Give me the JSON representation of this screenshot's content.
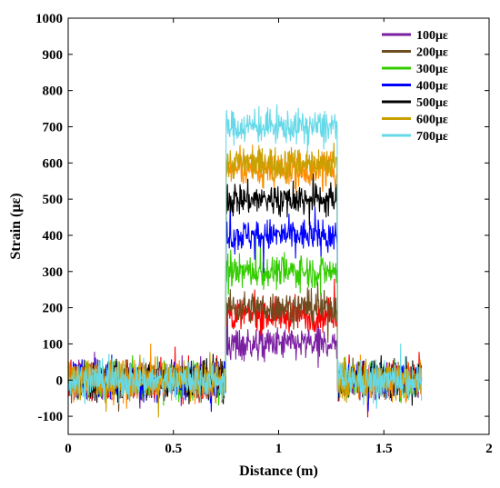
{
  "chart_data": {
    "type": "line",
    "xlabel": "Distance (m)",
    "ylabel": "Strain (με)",
    "xlim": [
      0,
      2
    ],
    "ylim": [
      -150,
      1000
    ],
    "xticks": [
      0,
      0.5,
      1,
      1.5,
      2
    ],
    "xtick_labels": [
      "0",
      "0.5",
      "1",
      "1.5",
      "2"
    ],
    "yticks": [
      -100,
      0,
      100,
      200,
      300,
      400,
      500,
      600,
      700,
      800,
      900,
      1000
    ],
    "ytick_labels": [
      "-100",
      "0",
      "100",
      "200",
      "300",
      "400",
      "500",
      "600",
      "700",
      "800",
      "900",
      "1000"
    ],
    "grid": false,
    "legend_position": "top-right",
    "strained_section_m": [
      0.75,
      1.28
    ],
    "fiber_end_m": 1.68,
    "series": [
      {
        "name": "100με",
        "color": "#7B1FA2",
        "level": 100
      },
      {
        "name": "200με",
        "color": "#6D4C1F",
        "level": 200
      },
      {
        "name": "300με",
        "color": "#33CC00",
        "level": 300
      },
      {
        "name": "400με",
        "color": "#0000FF",
        "level": 400
      },
      {
        "name": "500με",
        "color": "#000000",
        "level": 500
      },
      {
        "name": "600με",
        "color": "#C8A000",
        "level": 600
      },
      {
        "name": "700με",
        "color": "#66D9E8",
        "level": 700
      }
    ],
    "unlabeled_series": [
      {
        "color": "#FF0000",
        "level": 180
      },
      {
        "color": "#FF8C00",
        "level": 580
      }
    ]
  }
}
